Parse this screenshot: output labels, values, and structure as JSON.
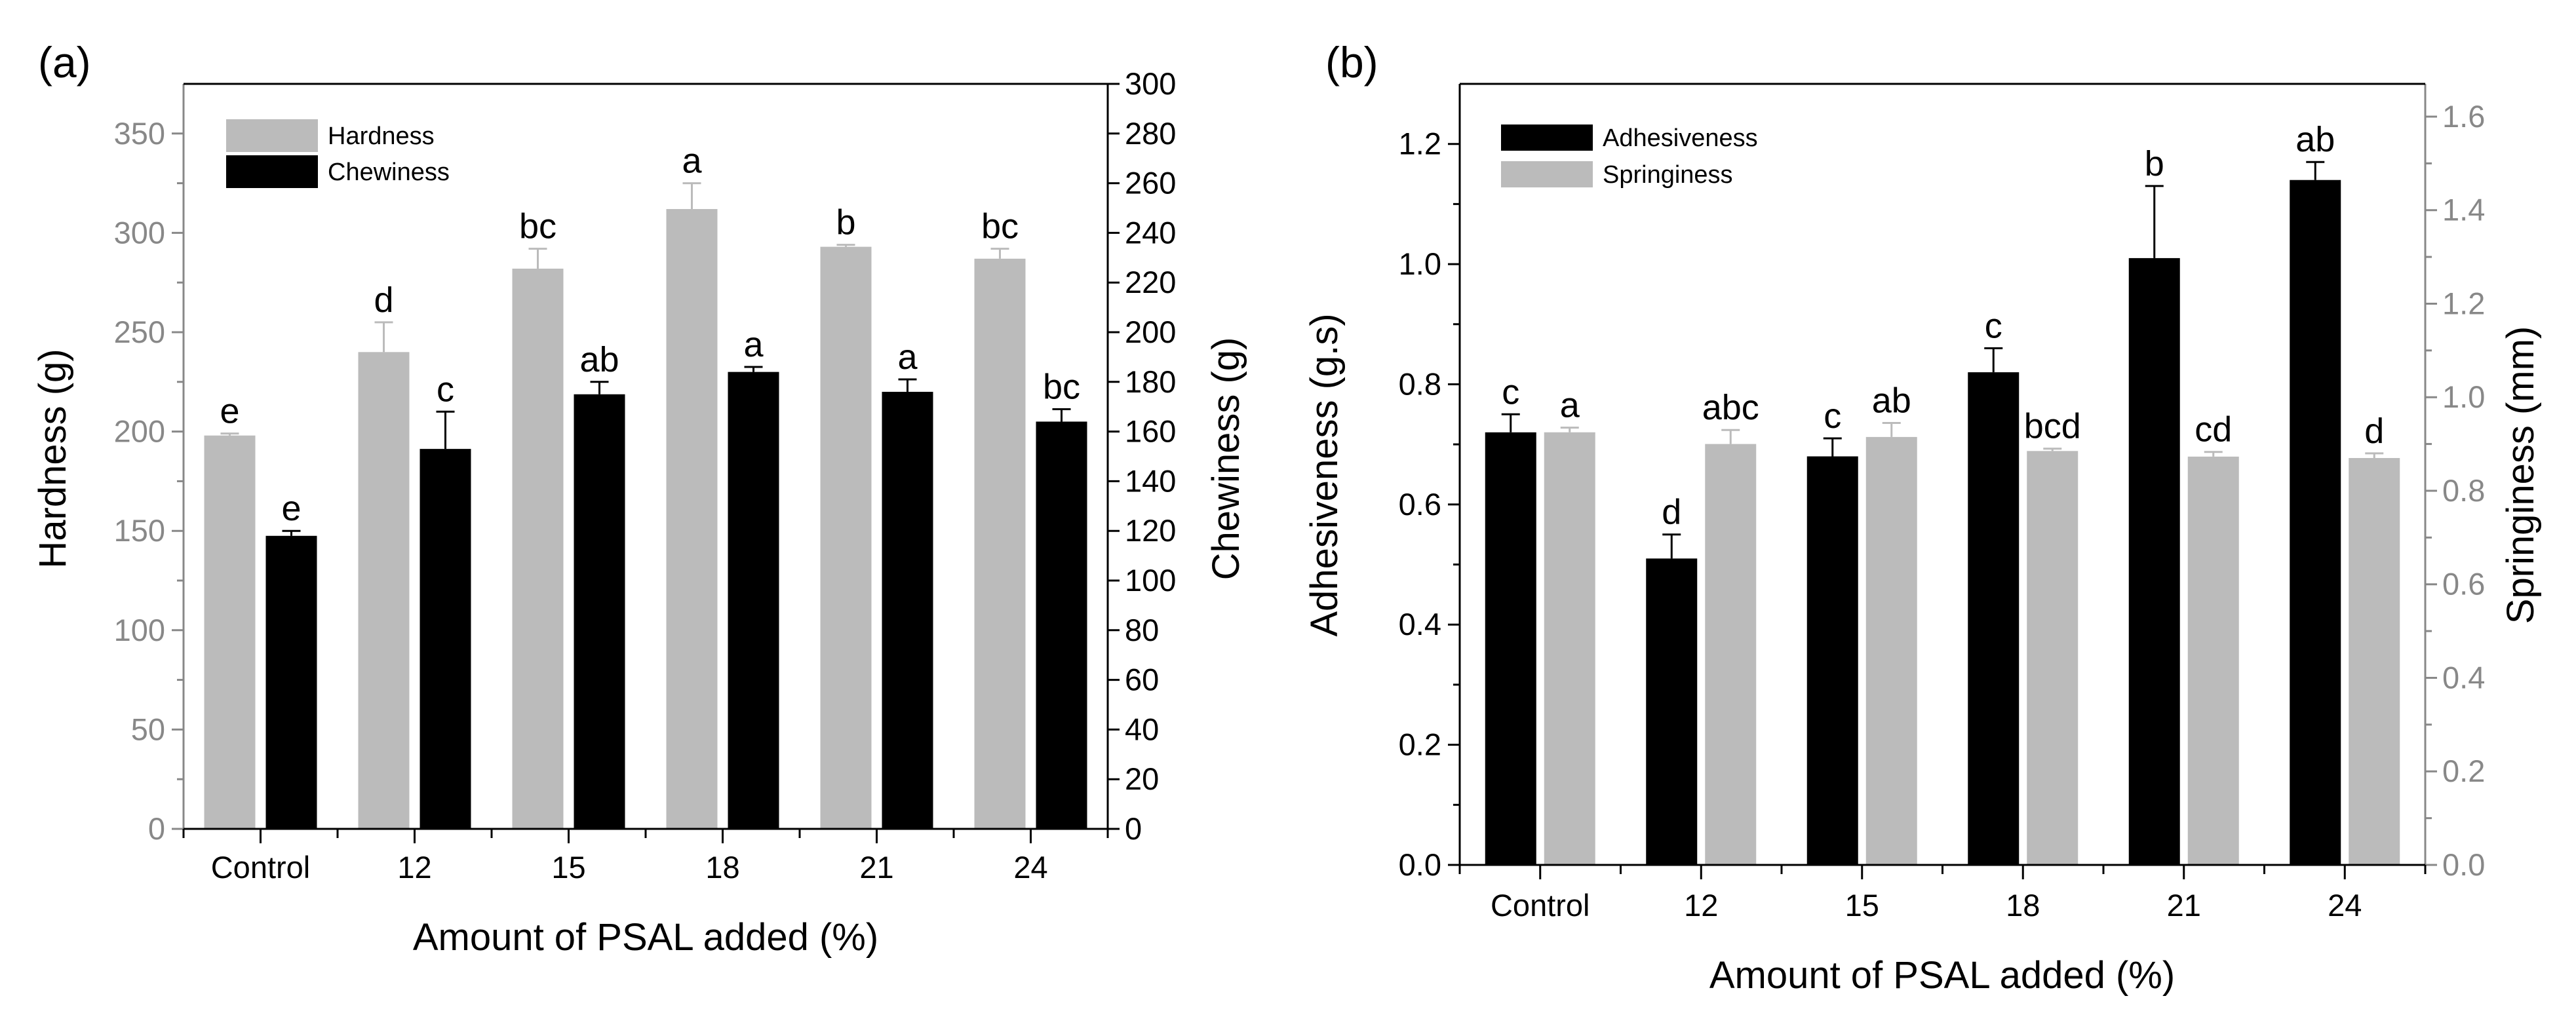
{
  "chart_data": [
    {
      "panel_label": "(a)",
      "type": "bar",
      "categories": [
        "Control",
        "12",
        "15",
        "18",
        "21",
        "24"
      ],
      "xlabel": "Amount of PSAL added (%)",
      "ylabel_left": "Hardness (g)",
      "ylabel_right": "Chewiness (g)",
      "ylim_left": [
        0,
        375
      ],
      "yticks_left": [
        0,
        50,
        100,
        150,
        200,
        250,
        300,
        350
      ],
      "ylim_right": [
        0,
        300
      ],
      "yticks_right": [
        0,
        20,
        40,
        60,
        80,
        100,
        120,
        140,
        160,
        180,
        200,
        220,
        240,
        260,
        280,
        300
      ],
      "legend_position": "top-left",
      "series": [
        {
          "name": "Hardness",
          "axis": "left",
          "color": "#bbbbbb",
          "values": [
            198,
            240,
            282,
            312,
            293,
            287
          ],
          "errors": [
            1,
            15,
            10,
            13,
            1,
            5
          ],
          "letters": [
            "e",
            "d",
            "bc",
            "a",
            "b",
            "bc"
          ]
        },
        {
          "name": "Chewiness",
          "axis": "right",
          "color": "#000000",
          "values": [
            118,
            153,
            175,
            184,
            176,
            164
          ],
          "errors": [
            2,
            15,
            5,
            2,
            5,
            5
          ],
          "letters": [
            "e",
            "c",
            "ab",
            "a",
            "a",
            "bc"
          ]
        }
      ]
    },
    {
      "panel_label": "(b)",
      "type": "bar",
      "categories": [
        "Control",
        "12",
        "15",
        "18",
        "21",
        "24"
      ],
      "xlabel": "Amount of PSAL added (%)",
      "ylabel_left": "Adhesiveness (g.s)",
      "ylabel_right": "Springiness (mm)",
      "ylim_left": [
        0,
        1.3
      ],
      "yticks_left": [
        0.0,
        0.2,
        0.4,
        0.6,
        0.8,
        1.0,
        1.2
      ],
      "ylim_right": [
        0,
        1.67
      ],
      "yticks_right": [
        0.0,
        0.2,
        0.4,
        0.6,
        0.8,
        1.0,
        1.2,
        1.4,
        1.6
      ],
      "legend_position": "top-left",
      "series": [
        {
          "name": "Adhesiveness",
          "axis": "left",
          "color": "#000000",
          "values": [
            0.72,
            0.51,
            0.68,
            0.82,
            1.01,
            1.14
          ],
          "errors": [
            0.03,
            0.04,
            0.03,
            0.04,
            0.12,
            0.03
          ],
          "letters": [
            "c",
            "d",
            "c",
            "c",
            "b",
            "ab"
          ]
        },
        {
          "name": "Springiness",
          "axis": "right",
          "color": "#bbbbbb",
          "values": [
            0.925,
            0.9,
            0.915,
            0.885,
            0.873,
            0.87
          ],
          "errors": [
            0.01,
            0.03,
            0.03,
            0.005,
            0.01,
            0.01
          ],
          "letters": [
            "a",
            "abc",
            "ab",
            "bcd",
            "cd",
            "d"
          ]
        }
      ]
    }
  ]
}
